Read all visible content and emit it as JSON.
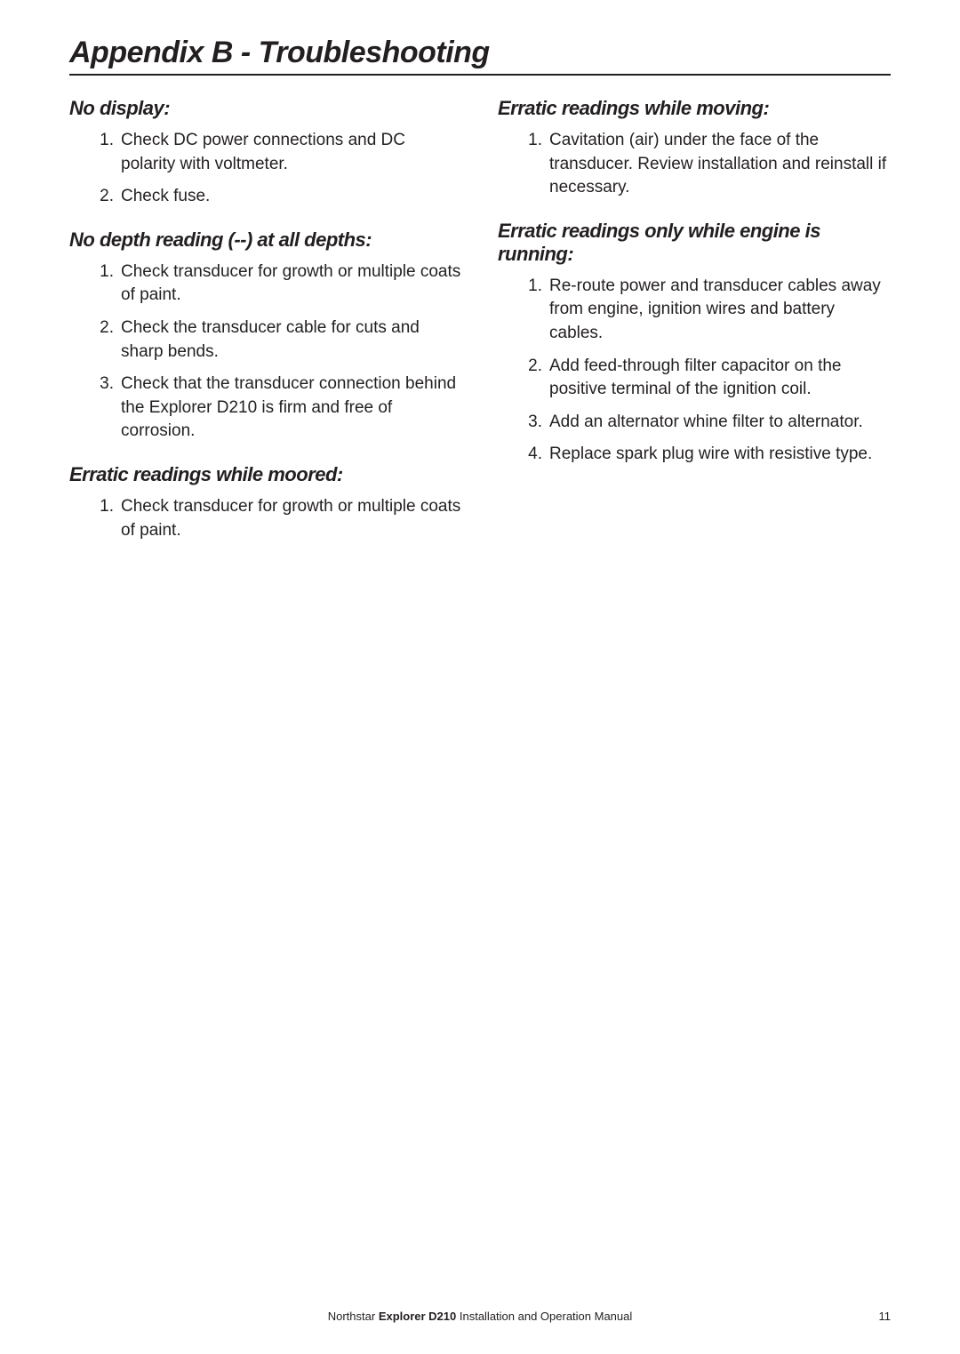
{
  "title": "Appendix B - Troubleshooting",
  "left": {
    "sections": [
      {
        "heading": "No display:",
        "items": [
          "Check DC power connections and DC polarity with voltmeter.",
          "Check fuse."
        ]
      },
      {
        "heading": "No depth reading (--) at all depths:",
        "items": [
          "Check transducer for growth or multiple coats of paint.",
          "Check the transducer cable for cuts and sharp bends.",
          "Check that the transducer connection behind the Explorer D210 is firm and free of corrosion."
        ]
      },
      {
        "heading": "Erratic readings while moored:",
        "items": [
          "Check transducer for growth or multiple coats of paint."
        ]
      }
    ]
  },
  "right": {
    "sections": [
      {
        "heading": "Erratic readings while moving:",
        "items": [
          "Cavitation (air) under the face of the transducer. Review installation and reinstall if necessary."
        ]
      },
      {
        "heading": "Erratic readings only while engine is running:",
        "items": [
          "Re-route power and transducer cables away from engine, ignition wires and battery cables.",
          "Add feed-through filter capacitor on the positive terminal of the ignition coil.",
          "Add an alternator whine filter to alternator.",
          "Replace spark plug wire with resistive type."
        ]
      }
    ]
  },
  "footer": {
    "brand": "Northstar ",
    "product": "Explorer D210",
    "rest": " Installation and Operation Manual",
    "page": "11"
  }
}
